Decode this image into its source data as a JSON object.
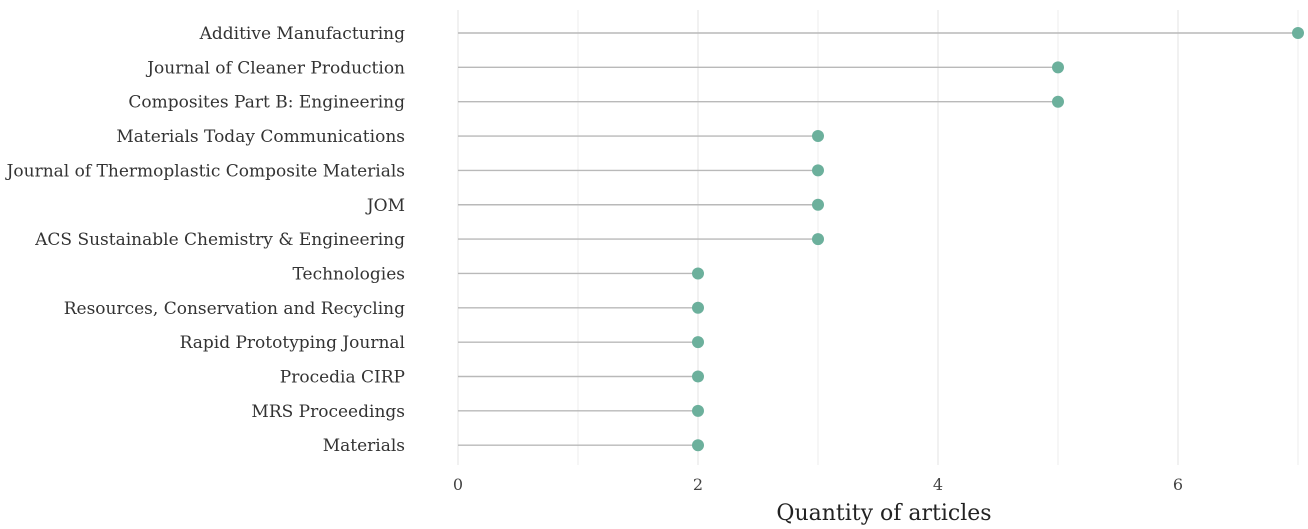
{
  "chart_data": {
    "type": "lollipop",
    "categories": [
      "Additive Manufacturing",
      "Journal of Cleaner Production",
      "Composites Part B: Engineering",
      "Materials Today Communications",
      "Journal of Thermoplastic Composite Materials",
      "JOM",
      "ACS Sustainable Chemistry & Engineering",
      "Technologies",
      "Resources, Conservation and Recycling",
      "Rapid Prototyping Journal",
      "Procedia CIRP",
      "MRS Proceedings",
      "Materials"
    ],
    "values": [
      7,
      5,
      5,
      3,
      3,
      3,
      3,
      2,
      2,
      2,
      2,
      2,
      2
    ],
    "title": "",
    "xlabel": "Quantity of articles",
    "ylabel": "",
    "xlim": [
      0,
      7
    ],
    "xticks": [
      0,
      2,
      4,
      6
    ],
    "grid": "vertical",
    "legend": "none",
    "colors": {
      "point": "#6cb09c",
      "stem": "#b9b9b9",
      "grid": "#e3e3e3"
    }
  }
}
